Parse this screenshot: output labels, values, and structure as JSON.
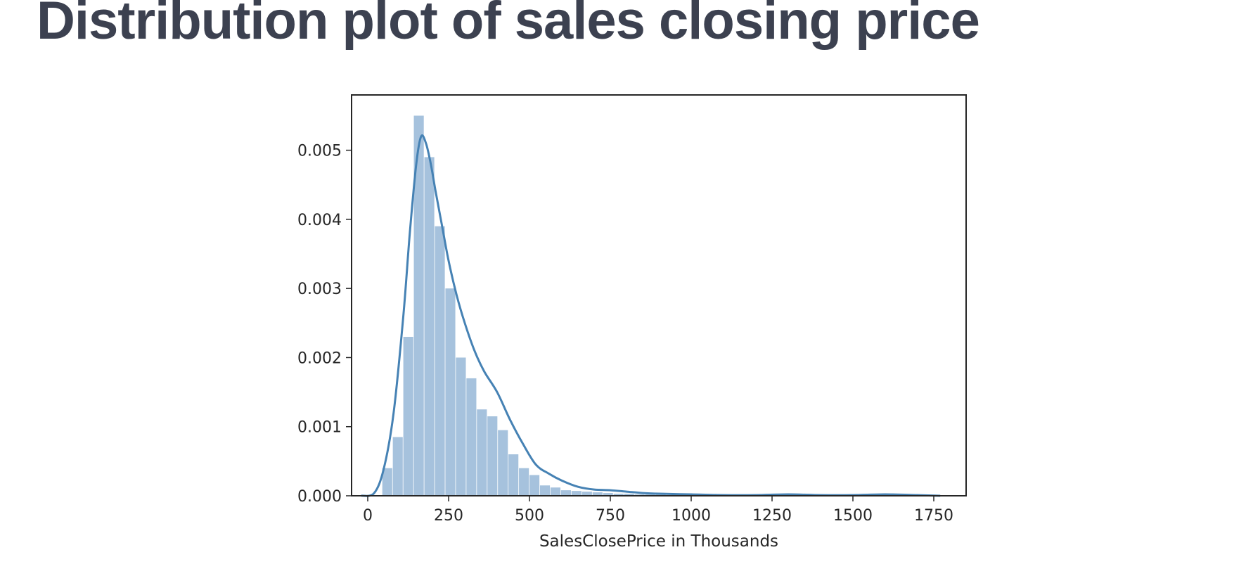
{
  "page": {
    "title": "Distribution plot of sales closing price"
  },
  "colors": {
    "hist_fill": "#a6c2dd",
    "kde_line": "#4682b4",
    "axis": "#262626"
  },
  "chart_data": {
    "type": "histogram",
    "title": "",
    "xlabel": "SalesClosePrice in Thousands",
    "ylabel": "",
    "xlim": [
      -50,
      1850
    ],
    "ylim": [
      0,
      0.0058
    ],
    "x_ticks": [
      0,
      250,
      500,
      750,
      1000,
      1250,
      1500,
      1750
    ],
    "y_ticks": [
      0.0,
      0.001,
      0.002,
      0.003,
      0.004,
      0.005
    ],
    "y_tick_labels": [
      "0.000",
      "0.001",
      "0.002",
      "0.003",
      "0.004",
      "0.005"
    ],
    "grid": false,
    "legend": "none",
    "bin_width": 32.5,
    "bin_start": 45,
    "hist_density": [
      0.0004,
      0.00085,
      0.0023,
      0.0055,
      0.0049,
      0.0039,
      0.003,
      0.002,
      0.0017,
      0.00125,
      0.00115,
      0.00095,
      0.0006,
      0.0004,
      0.0003,
      0.00015,
      0.00012,
      8e-05,
      7e-05,
      6e-05,
      5e-05,
      4e-05,
      3e-05,
      3e-05,
      2e-05,
      2e-05,
      2e-05,
      1e-05,
      1e-05,
      1e-05,
      1e-05,
      1e-05,
      1e-05,
      1e-05,
      1e-05,
      5e-06,
      5e-06,
      5e-06,
      5e-06,
      5e-06,
      5e-06,
      5e-06,
      5e-06,
      5e-06,
      5e-06,
      5e-06,
      5e-06,
      5e-06,
      5e-06,
      5e-06,
      5e-06,
      5e-06
    ],
    "kde": {
      "x": [
        -20,
        20,
        50,
        80,
        110,
        130,
        150,
        165,
        180,
        195,
        210,
        230,
        250,
        275,
        300,
        330,
        360,
        400,
        440,
        480,
        520,
        560,
        600,
        650,
        700,
        750,
        800,
        850,
        900,
        1000,
        1100,
        1200,
        1300,
        1400,
        1500,
        1600,
        1700,
        1770
      ],
      "y": [
        0.0,
        4e-05,
        0.0004,
        0.0012,
        0.0026,
        0.0038,
        0.0048,
        0.0052,
        0.0051,
        0.0048,
        0.0044,
        0.0039,
        0.0034,
        0.0029,
        0.0025,
        0.0021,
        0.0018,
        0.0015,
        0.0011,
        0.00075,
        0.00045,
        0.00032,
        0.00022,
        0.00013,
        9e-05,
        8e-05,
        6e-05,
        4e-05,
        3e-05,
        2e-05,
        1e-05,
        1e-05,
        2e-05,
        1e-05,
        1e-05,
        2e-05,
        1e-05,
        0.0
      ]
    }
  }
}
